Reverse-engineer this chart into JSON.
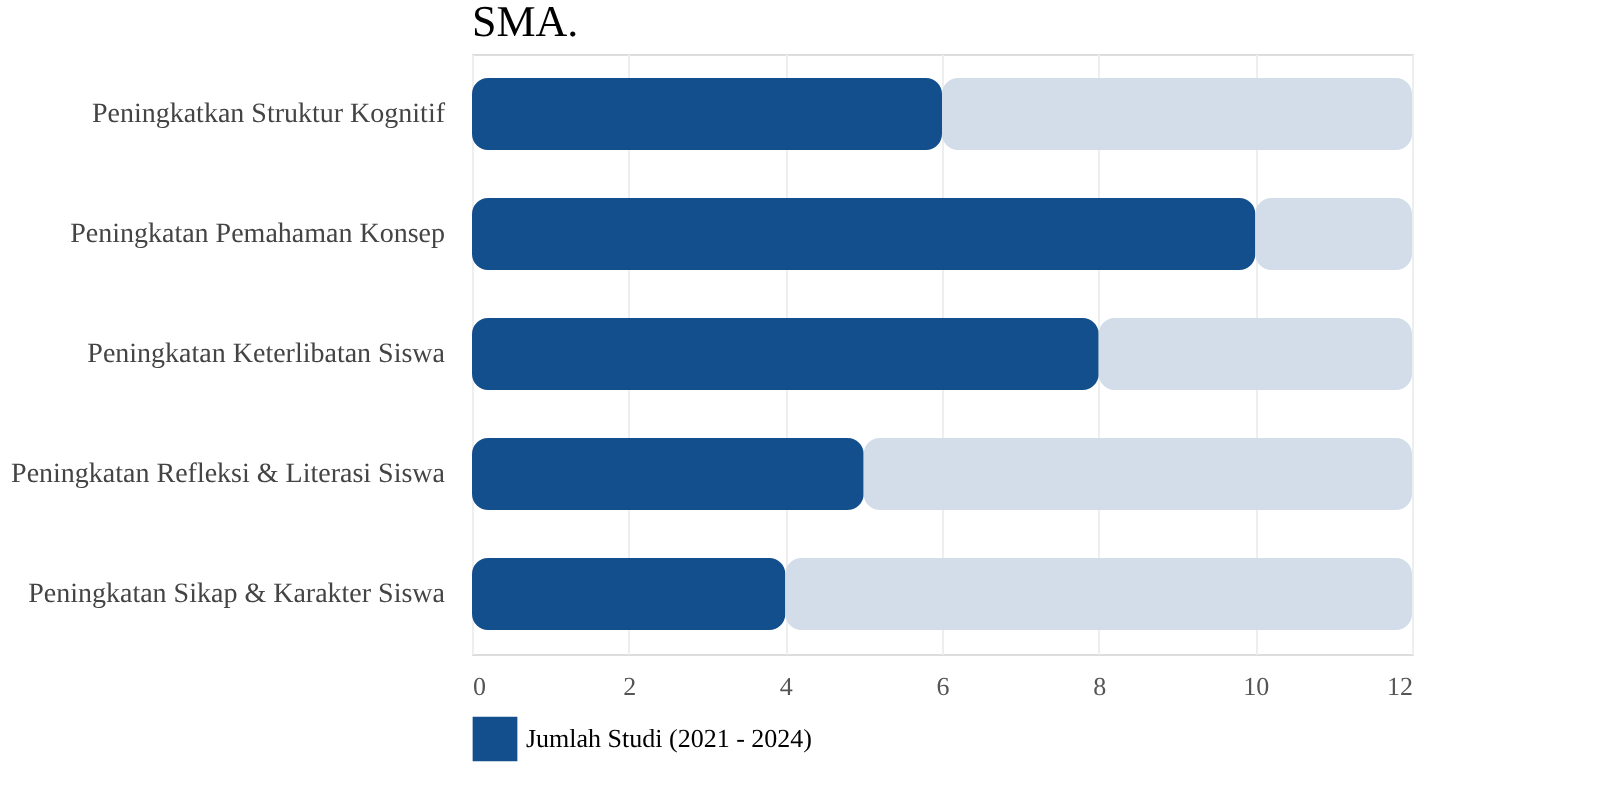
{
  "chart_data": {
    "type": "bar",
    "orientation": "horizontal",
    "stacked": true,
    "title": "SMA.",
    "categories": [
      "Peningkatkan Struktur Kognitif",
      "Peningkatan Pemahaman Konsep",
      "Peningkatan Keterlibatan Siswa",
      "Peningkatan Refleksi & Literasi Siswa",
      "Peningkatan Sikap & Karakter Siswa"
    ],
    "series": [
      {
        "name": "Jumlah Studi (2021 - 2024)",
        "color": "#134f8c",
        "values": [
          6,
          10,
          8,
          5,
          4
        ]
      },
      {
        "color": "#d3dde9",
        "values": [
          6,
          2,
          4,
          7,
          8
        ]
      }
    ],
    "xlim": [
      0,
      12
    ],
    "xticks": [
      0,
      2,
      4,
      6,
      8,
      10,
      12
    ],
    "grid": "x",
    "legend": "bottom"
  }
}
